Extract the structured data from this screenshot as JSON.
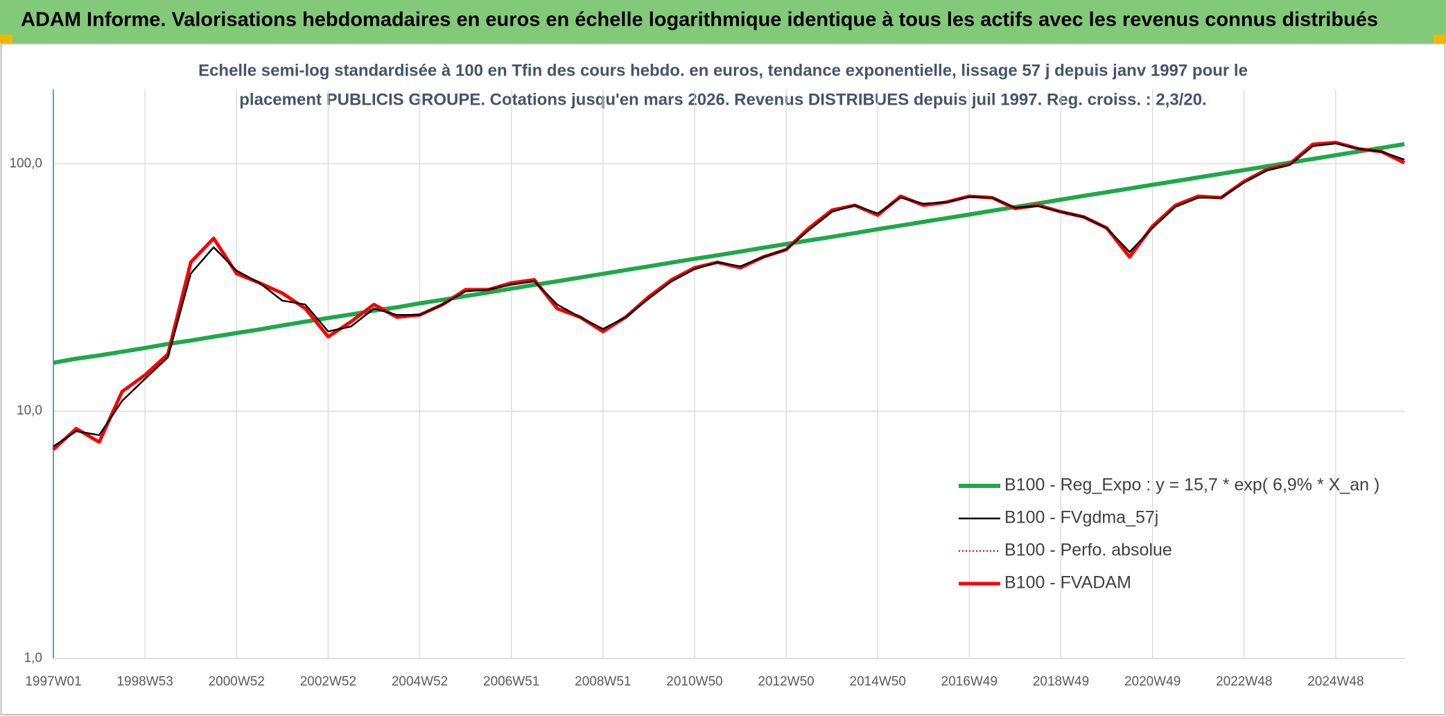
{
  "chart_data": {
    "type": "line",
    "header": "ADAM Informe. Valorisations hebdomadaires en euros en échelle logarithmique identique à tous les actifs avec les revenus connus distribués",
    "title": [
      "Echelle semi-log standardisée à 100 en Tfin des cours hebdo. en euros, tendance exponentielle, lissage 57 j depuis janv 1997 pour le",
      "placement PUBLICIS GROUPE. Cotations jusqu'en mars 2026. Revenus DISTRIBUES depuis juil 1997. Reg. croiss. : 2,3/20."
    ],
    "categories": [
      "1997W01",
      null,
      null,
      null,
      "1998W53",
      null,
      null,
      null,
      "2000W52",
      null,
      null,
      null,
      "2002W52",
      null,
      null,
      null,
      "2004W52",
      null,
      null,
      null,
      "2006W51",
      null,
      null,
      null,
      "2008W51",
      null,
      null,
      null,
      "2010W50",
      null,
      null,
      null,
      "2012W50",
      null,
      null,
      null,
      "2014W50",
      null,
      null,
      null,
      "2016W49",
      null,
      null,
      null,
      "2018W49",
      null,
      null,
      null,
      "2020W49",
      null,
      null,
      null,
      "2022W48",
      null,
      null,
      null,
      "2024W48",
      null,
      null,
      null
    ],
    "series": [
      {
        "name": "B100 - Reg_Expo : y = 15,7 * exp( 6,9% *  X_an )",
        "color": "#1fa84a",
        "style": "solid",
        "values": [
          15.7,
          16.3,
          16.8,
          17.4,
          18.0,
          18.7,
          19.3,
          20.0,
          20.7,
          21.4,
          22.2,
          23.0,
          23.8,
          24.6,
          25.5,
          26.3,
          27.3,
          28.2,
          29.2,
          30.2,
          31.3,
          32.4,
          33.5,
          34.7,
          35.9,
          37.2,
          38.5,
          39.9,
          41.3,
          42.7,
          44.2,
          45.8,
          47.4,
          49.0,
          50.7,
          52.5,
          54.4,
          56.3,
          58.3,
          60.3,
          62.4,
          64.6,
          66.9,
          69.2,
          71.7,
          74.2,
          76.8,
          79.5,
          82.3,
          85.1,
          88.1,
          91.2,
          94.4,
          97.7,
          101.2,
          104.7,
          108.4,
          112.2,
          116.1,
          120.2
        ]
      },
      {
        "name": "B100 - FVgdma_57j",
        "color": "#000000",
        "style": "solid",
        "values": [
          7.2,
          8.3,
          8.0,
          11,
          13.5,
          16.5,
          36,
          46,
          37,
          33,
          28,
          27,
          21,
          22,
          26,
          24.5,
          24.5,
          27,
          30.5,
          31,
          32.5,
          33.5,
          27,
          24,
          21.5,
          24,
          28.5,
          33.5,
          37.5,
          40,
          38.5,
          42,
          45,
          54,
          64,
          68,
          63,
          73,
          69,
          70,
          73.5,
          73,
          66.5,
          67.5,
          64,
          61,
          55,
          44,
          55,
          67,
          73,
          73,
          84,
          94,
          99,
          118,
          121,
          115,
          112,
          104
        ]
      },
      {
        "name": "B100 - Perfo. absolue",
        "color": "#e00000",
        "style": "dotted",
        "values": [
          7,
          8.5,
          7.5,
          12,
          14,
          17,
          40,
          50,
          36,
          33,
          30,
          26,
          20,
          23,
          27,
          24,
          24.5,
          27,
          31,
          31,
          33,
          34,
          26,
          24,
          21,
          24,
          29,
          34,
          38,
          40,
          38,
          42,
          45,
          55,
          65,
          68,
          62,
          74,
          68,
          70,
          74,
          73,
          66,
          68,
          64,
          61,
          55,
          42,
          56,
          68,
          74,
          73,
          85,
          95,
          100,
          120,
          122,
          115,
          112,
          101
        ]
      },
      {
        "name": "B100 - FVADAM",
        "color": "#ff0000",
        "style": "solid",
        "values": [
          7,
          8.5,
          7.5,
          12,
          14,
          17,
          40,
          50,
          36,
          33,
          30,
          26,
          20,
          23,
          27,
          24,
          24.5,
          27,
          31,
          31,
          33,
          34,
          26,
          24,
          21,
          24,
          29,
          34,
          38,
          40,
          38,
          42,
          45,
          55,
          65,
          68,
          62,
          74,
          68,
          70,
          74,
          73,
          66,
          68,
          64,
          61,
          55,
          42,
          56,
          68,
          74,
          73,
          85,
          95,
          100,
          120,
          122,
          115,
          112,
          101
        ]
      }
    ],
    "log_scale": true,
    "ylim": [
      1,
      200
    ],
    "yticks": [
      {
        "value": 1,
        "label": "1,0"
      },
      {
        "value": 10,
        "label": "10,0"
      },
      {
        "value": 100,
        "label": "100,0"
      }
    ],
    "grid": true,
    "legend": "lower right"
  }
}
